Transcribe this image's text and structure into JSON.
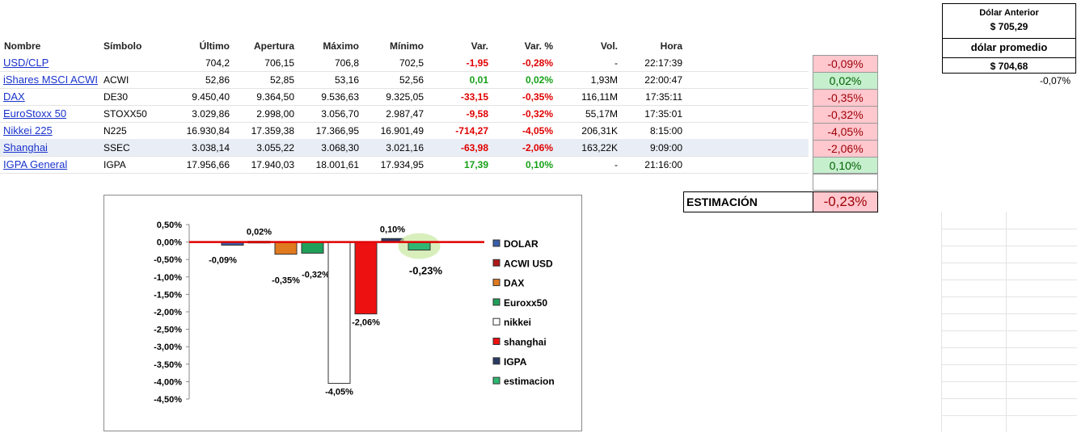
{
  "table": {
    "headers": [
      "Nombre",
      "Símbolo",
      "Último",
      "Apertura",
      "Máximo",
      "Mínimo",
      "Var.",
      "Var. %",
      "Vol.",
      "Hora"
    ],
    "rows": [
      {
        "name": "USD/CLP",
        "symbol": "",
        "last": "704,2",
        "open": "706,15",
        "high": "706,8",
        "low": "702,5",
        "var": "-1,95",
        "varp": "-0,28%",
        "vol": "-",
        "time": "22:17:39",
        "sign": "neg",
        "highlight": false
      },
      {
        "name": "iShares MSCI ACWI",
        "symbol": "ACWI",
        "last": "52,86",
        "open": "52,85",
        "high": "53,16",
        "low": "52,56",
        "var": "0,01",
        "varp": "0,02%",
        "vol": "1,93M",
        "time": "22:00:47",
        "sign": "pos",
        "highlight": false
      },
      {
        "name": "DAX",
        "symbol": "DE30",
        "last": "9.450,40",
        "open": "9.364,50",
        "high": "9.536,63",
        "low": "9.325,05",
        "var": "-33,15",
        "varp": "-0,35%",
        "vol": "116,11M",
        "time": "17:35:11",
        "sign": "neg",
        "highlight": false
      },
      {
        "name": "EuroStoxx 50",
        "symbol": "STOXX50",
        "last": "3.029,86",
        "open": "2.998,00",
        "high": "3.056,70",
        "low": "2.987,47",
        "var": "-9,58",
        "varp": "-0,32%",
        "vol": "55,17M",
        "time": "17:35:01",
        "sign": "neg",
        "highlight": false
      },
      {
        "name": "Nikkei 225",
        "symbol": "N225",
        "last": "16.930,84",
        "open": "17.359,38",
        "high": "17.366,95",
        "low": "16.901,49",
        "var": "-714,27",
        "varp": "-4,05%",
        "vol": "206,31K",
        "time": "8:15:00",
        "sign": "neg",
        "highlight": false
      },
      {
        "name": "Shanghai",
        "symbol": "SSEC",
        "last": "3.038,14",
        "open": "3.055,22",
        "high": "3.068,30",
        "low": "3.021,16",
        "var": "-63,98",
        "varp": "-2,06%",
        "vol": "163,22K",
        "time": "9:09:00",
        "sign": "neg",
        "highlight": true
      },
      {
        "name": "IGPA General",
        "symbol": "IGPA",
        "last": "17.956,66",
        "open": "17.940,03",
        "high": "18.001,61",
        "low": "17.934,95",
        "var": "17,39",
        "varp": "0,10%",
        "vol": "-",
        "time": "21:16:00",
        "sign": "pos",
        "highlight": false
      }
    ]
  },
  "side_pcts": [
    {
      "value": "-0,09%",
      "sign": "neg"
    },
    {
      "value": "0,02%",
      "sign": "pos"
    },
    {
      "value": "-0,35%",
      "sign": "neg"
    },
    {
      "value": "-0,32%",
      "sign": "neg"
    },
    {
      "value": "-4,05%",
      "sign": "neg"
    },
    {
      "value": "-2,06%",
      "sign": "neg"
    },
    {
      "value": "0,10%",
      "sign": "pos"
    }
  ],
  "estimacion": {
    "label": "ESTIMACIÓN",
    "value": "-0,23%"
  },
  "dolar": {
    "anterior_label": "Dólar Anterior",
    "anterior_value": "$ 705,29",
    "promedio_label": "dólar promedio",
    "promedio_value": "$ 704,68",
    "extra": "-0,07%"
  },
  "chart_data": {
    "type": "bar",
    "categories": [
      "DOLAR",
      "ACWI USD",
      "DAX",
      "Euroxx50",
      "nikkei",
      "shanghai",
      "IGPA",
      "estimacion"
    ],
    "values": [
      -0.09,
      0.02,
      -0.35,
      -0.32,
      -4.05,
      -2.06,
      0.1,
      -0.23
    ],
    "data_labels": [
      "-0,09%",
      "0,02%",
      "-0,35%",
      "-0,32%",
      "-4,05%",
      "-2,06%",
      "0,10%",
      "-0,23%"
    ],
    "colors": [
      "#3a5ea8",
      "#b01818",
      "#e07a1f",
      "#1fa05a",
      "#ffffff",
      "#ee1111",
      "#2a3b66",
      "#2fb872"
    ],
    "ylim": [
      -4.5,
      0.5
    ],
    "ticks": [
      "0,50%",
      "0,00%",
      "-0,50%",
      "-1,00%",
      "-1,50%",
      "-2,00%",
      "-2,50%",
      "-3,00%",
      "-3,50%",
      "-4,00%",
      "-4,50%"
    ],
    "legend_position": "right"
  }
}
